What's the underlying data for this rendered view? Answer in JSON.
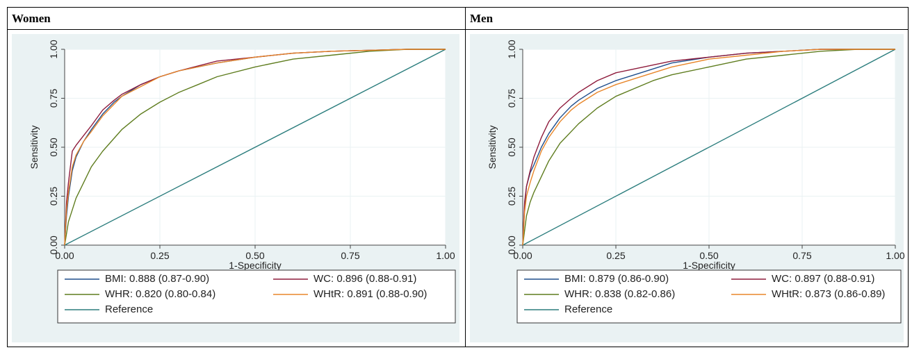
{
  "chart_data": [
    {
      "type": "line",
      "title": "Women",
      "xlabel": "1-Specificity",
      "ylabel": "Sensitivity",
      "xlim": [
        0,
        1
      ],
      "ylim": [
        0,
        1
      ],
      "xticks": [
        "0.00",
        "0.25",
        "0.50",
        "0.75",
        "1.00"
      ],
      "yticks": [
        "0.00",
        "0.25",
        "0.50",
        "0.75",
        "1.00"
      ],
      "grid": true,
      "legend_position": "bottom",
      "series": [
        {
          "name": "BMI: 0.888 (0.87-0.90)",
          "color": "#1f4e8c",
          "x": [
            0,
            0.005,
            0.01,
            0.02,
            0.03,
            0.05,
            0.07,
            0.1,
            0.13,
            0.15,
            0.2,
            0.25,
            0.3,
            0.4,
            0.5,
            0.6,
            0.7,
            0.8,
            0.9,
            1.0
          ],
          "y": [
            0,
            0.15,
            0.25,
            0.38,
            0.45,
            0.53,
            0.59,
            0.67,
            0.73,
            0.76,
            0.82,
            0.86,
            0.89,
            0.93,
            0.96,
            0.98,
            0.99,
            0.995,
            1.0,
            1.0
          ]
        },
        {
          "name": "WC: 0.896 (0.88-0.91)",
          "color": "#8e1b3c",
          "x": [
            0,
            0.005,
            0.01,
            0.02,
            0.03,
            0.05,
            0.07,
            0.1,
            0.13,
            0.15,
            0.2,
            0.25,
            0.3,
            0.4,
            0.5,
            0.6,
            0.7,
            0.8,
            0.9,
            1.0
          ],
          "y": [
            0,
            0.22,
            0.32,
            0.48,
            0.51,
            0.56,
            0.61,
            0.69,
            0.74,
            0.77,
            0.82,
            0.86,
            0.89,
            0.94,
            0.96,
            0.98,
            0.99,
            0.995,
            1.0,
            1.0
          ]
        },
        {
          "name": "WHR: 0.820 (0.80-0.84)",
          "color": "#5f7d1f",
          "x": [
            0,
            0.01,
            0.02,
            0.03,
            0.05,
            0.07,
            0.1,
            0.15,
            0.2,
            0.25,
            0.3,
            0.35,
            0.4,
            0.5,
            0.6,
            0.7,
            0.8,
            0.9,
            1.0
          ],
          "y": [
            0,
            0.12,
            0.18,
            0.24,
            0.32,
            0.4,
            0.48,
            0.59,
            0.67,
            0.73,
            0.78,
            0.82,
            0.86,
            0.91,
            0.95,
            0.97,
            0.99,
            1.0,
            1.0
          ]
        },
        {
          "name": "WHtR: 0.891 (0.88-0.90)",
          "color": "#e8862a",
          "x": [
            0,
            0.005,
            0.01,
            0.02,
            0.03,
            0.05,
            0.07,
            0.1,
            0.13,
            0.15,
            0.2,
            0.25,
            0.3,
            0.4,
            0.5,
            0.6,
            0.7,
            0.8,
            0.9,
            1.0
          ],
          "y": [
            0,
            0.18,
            0.27,
            0.4,
            0.46,
            0.53,
            0.58,
            0.66,
            0.72,
            0.76,
            0.81,
            0.86,
            0.89,
            0.93,
            0.96,
            0.98,
            0.99,
            0.995,
            1.0,
            1.0
          ]
        },
        {
          "name": "Reference",
          "color": "#2b7d7d",
          "x": [
            0,
            1
          ],
          "y": [
            0,
            1
          ]
        }
      ]
    },
    {
      "type": "line",
      "title": "Men",
      "xlabel": "1-Specificity",
      "ylabel": "Sensitivity",
      "xlim": [
        0,
        1
      ],
      "ylim": [
        0,
        1
      ],
      "xticks": [
        "0.00",
        "0.25",
        "0.50",
        "0.75",
        "1.00"
      ],
      "yticks": [
        "0.00",
        "0.25",
        "0.50",
        "0.75",
        "1.00"
      ],
      "grid": true,
      "legend_position": "bottom",
      "series": [
        {
          "name": "BMI: 0.879 (0.86-0.90)",
          "color": "#1f4e8c",
          "x": [
            0,
            0.005,
            0.01,
            0.02,
            0.03,
            0.05,
            0.07,
            0.1,
            0.13,
            0.15,
            0.2,
            0.25,
            0.3,
            0.4,
            0.5,
            0.6,
            0.7,
            0.8,
            0.9,
            1.0
          ],
          "y": [
            0,
            0.2,
            0.3,
            0.37,
            0.41,
            0.5,
            0.57,
            0.65,
            0.71,
            0.74,
            0.8,
            0.84,
            0.87,
            0.93,
            0.96,
            0.98,
            0.99,
            1.0,
            1.0,
            1.0
          ]
        },
        {
          "name": "WC: 0.897 (0.88-0.91)",
          "color": "#8e1b3c",
          "x": [
            0,
            0.005,
            0.01,
            0.02,
            0.03,
            0.05,
            0.07,
            0.1,
            0.13,
            0.15,
            0.2,
            0.25,
            0.3,
            0.4,
            0.5,
            0.6,
            0.7,
            0.8,
            0.9,
            1.0
          ],
          "y": [
            0,
            0.22,
            0.3,
            0.38,
            0.45,
            0.55,
            0.63,
            0.7,
            0.75,
            0.78,
            0.84,
            0.88,
            0.9,
            0.94,
            0.96,
            0.98,
            0.99,
            1.0,
            1.0,
            1.0
          ]
        },
        {
          "name": "WHR: 0.838 (0.82-0.86)",
          "color": "#5f7d1f",
          "x": [
            0,
            0.01,
            0.02,
            0.03,
            0.05,
            0.07,
            0.1,
            0.15,
            0.2,
            0.25,
            0.3,
            0.35,
            0.4,
            0.5,
            0.6,
            0.7,
            0.8,
            0.9,
            1.0
          ],
          "y": [
            0,
            0.15,
            0.22,
            0.27,
            0.35,
            0.43,
            0.52,
            0.62,
            0.7,
            0.76,
            0.8,
            0.84,
            0.87,
            0.91,
            0.95,
            0.97,
            0.99,
            1.0,
            1.0
          ]
        },
        {
          "name": "WHtR: 0.873 (0.86-0.89)",
          "color": "#e8862a",
          "x": [
            0,
            0.005,
            0.01,
            0.02,
            0.03,
            0.05,
            0.07,
            0.1,
            0.13,
            0.15,
            0.2,
            0.25,
            0.3,
            0.4,
            0.5,
            0.6,
            0.7,
            0.8,
            0.9,
            1.0
          ],
          "y": [
            0,
            0.17,
            0.25,
            0.32,
            0.38,
            0.48,
            0.55,
            0.63,
            0.69,
            0.72,
            0.78,
            0.82,
            0.85,
            0.91,
            0.95,
            0.97,
            0.99,
            1.0,
            1.0,
            1.0
          ]
        },
        {
          "name": "Reference",
          "color": "#2b7d7d",
          "x": [
            0,
            1
          ],
          "y": [
            0,
            1
          ]
        }
      ]
    }
  ]
}
